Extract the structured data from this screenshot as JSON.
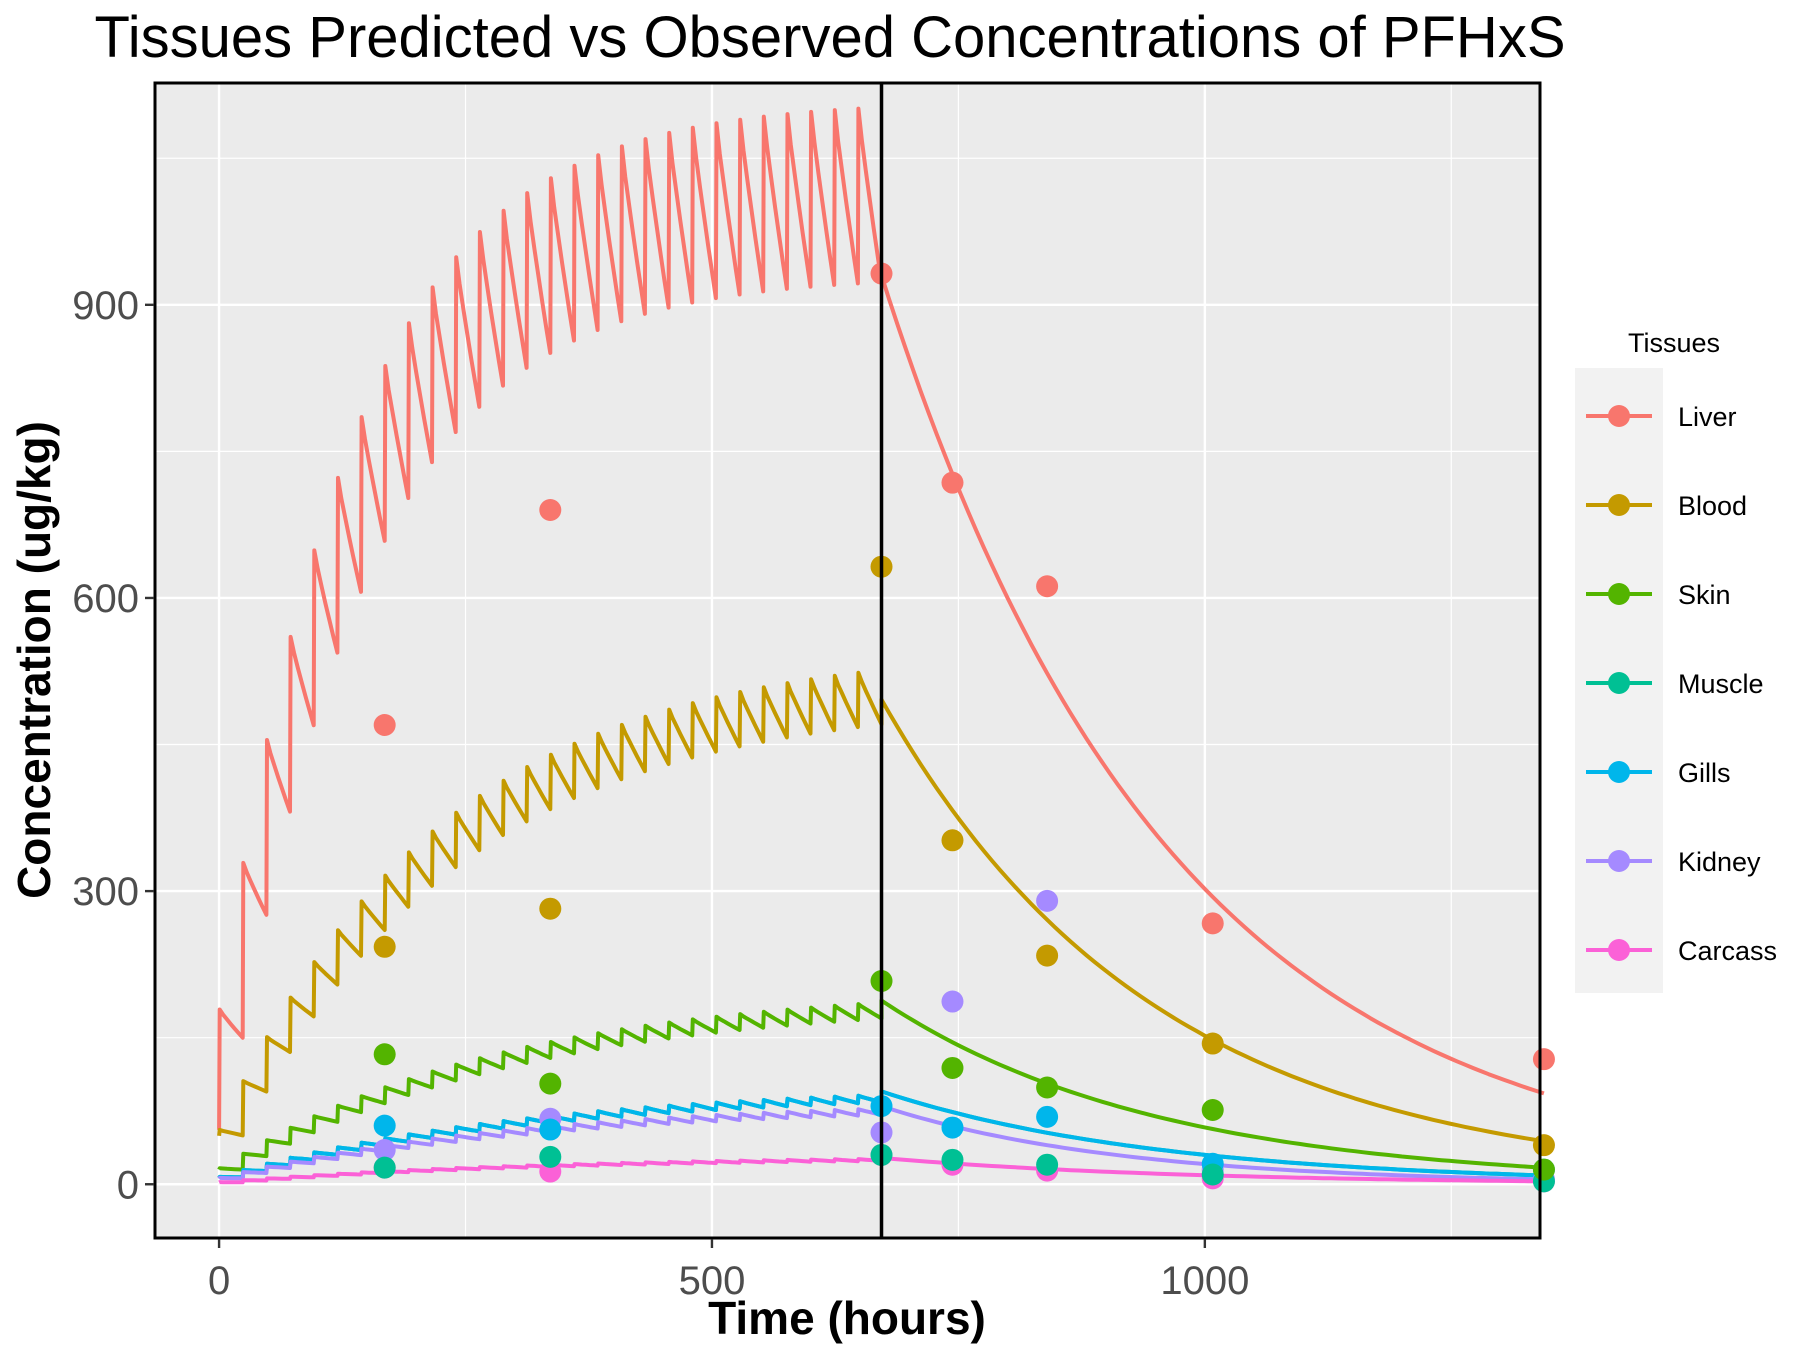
{
  "chart_data": {
    "type": "line",
    "title": "Tissues Predicted vs Observed Concentrations of PFHxS",
    "xlabel": "Time (hours)",
    "ylabel": "Concentration (ug/kg)",
    "xlim": [
      -65,
      1340
    ],
    "ylim": [
      -55,
      1127
    ],
    "x_ticks": [
      0,
      500,
      1000
    ],
    "y_ticks": [
      0,
      300,
      600,
      900
    ],
    "grid": true,
    "legend_position": "right",
    "legend_title": "Tissues",
    "dosing_end_line_x": 672,
    "dosing": {
      "interval_hours": 24,
      "end_hours": 672
    },
    "series": [
      {
        "name": "Liver",
        "color": "#F8766D",
        "rise": 150,
        "conc_end": 930,
        "model_end": 93,
        "base_frac": 0.06,
        "observed": [
          {
            "x": 168,
            "y": 470
          },
          {
            "x": 336,
            "y": 690
          },
          {
            "x": 672,
            "y": 932
          },
          {
            "x": 744,
            "y": 718
          },
          {
            "x": 840,
            "y": 612
          },
          {
            "x": 1008,
            "y": 267
          },
          {
            "x": 1344,
            "y": 128
          }
        ]
      },
      {
        "name": "Blood",
        "color": "#C49A00",
        "rise": 50,
        "conc_end": 496,
        "model_end": 44,
        "base_frac": 0.1,
        "observed": [
          {
            "x": 168,
            "y": 243
          },
          {
            "x": 336,
            "y": 282
          },
          {
            "x": 672,
            "y": 632
          },
          {
            "x": 744,
            "y": 352
          },
          {
            "x": 840,
            "y": 234
          },
          {
            "x": 1008,
            "y": 144
          },
          {
            "x": 1344,
            "y": 40
          }
        ]
      },
      {
        "name": "Skin",
        "color": "#53B400",
        "rise": 15,
        "conc_end": 188,
        "model_end": 17,
        "base_frac": 0.08,
        "observed": [
          {
            "x": 168,
            "y": 133
          },
          {
            "x": 336,
            "y": 103
          },
          {
            "x": 672,
            "y": 208
          },
          {
            "x": 744,
            "y": 119
          },
          {
            "x": 840,
            "y": 99
          },
          {
            "x": 1008,
            "y": 76
          },
          {
            "x": 1344,
            "y": 15
          }
        ]
      },
      {
        "name": "Muscle",
        "color": "#00C094",
        "rise": 7,
        "conc_end": 95,
        "model_end": 9,
        "base_frac": 0.07,
        "observed": [
          {
            "x": 168,
            "y": 17
          },
          {
            "x": 336,
            "y": 28
          },
          {
            "x": 672,
            "y": 30
          },
          {
            "x": 744,
            "y": 25
          },
          {
            "x": 840,
            "y": 20
          },
          {
            "x": 1008,
            "y": 10
          },
          {
            "x": 1344,
            "y": 3
          }
        ]
      },
      {
        "name": "Gills",
        "color": "#00B6EB",
        "rise": 7,
        "conc_end": 95,
        "model_end": 9,
        "base_frac": 0.07,
        "observed": [
          {
            "x": 168,
            "y": 60
          },
          {
            "x": 336,
            "y": 56
          },
          {
            "x": 672,
            "y": 80
          },
          {
            "x": 744,
            "y": 58
          },
          {
            "x": 840,
            "y": 69
          },
          {
            "x": 1008,
            "y": 21
          },
          {
            "x": 1344,
            "y": 15
          }
        ]
      },
      {
        "name": "Kidney",
        "color": "#A58AFF",
        "rise": 6,
        "conc_end": 80,
        "model_end": 5,
        "base_frac": 0.07,
        "observed": [
          {
            "x": 168,
            "y": 35
          },
          {
            "x": 336,
            "y": 67
          },
          {
            "x": 672,
            "y": 53
          },
          {
            "x": 744,
            "y": 187
          },
          {
            "x": 840,
            "y": 290
          },
          {
            "x": 1008,
            "y": 15
          },
          {
            "x": 1344,
            "y": 5
          }
        ]
      },
      {
        "name": "Carcass",
        "color": "#FB61D7",
        "rise": 2,
        "conc_end": 27,
        "model_end": 3,
        "base_frac": 0.07,
        "observed": [
          {
            "x": 168,
            "y": 17
          },
          {
            "x": 336,
            "y": 13
          },
          {
            "x": 672,
            "y": 30
          },
          {
            "x": 744,
            "y": 20
          },
          {
            "x": 840,
            "y": 14
          },
          {
            "x": 1008,
            "y": 6
          },
          {
            "x": 1344,
            "y": 3
          }
        ]
      }
    ]
  }
}
